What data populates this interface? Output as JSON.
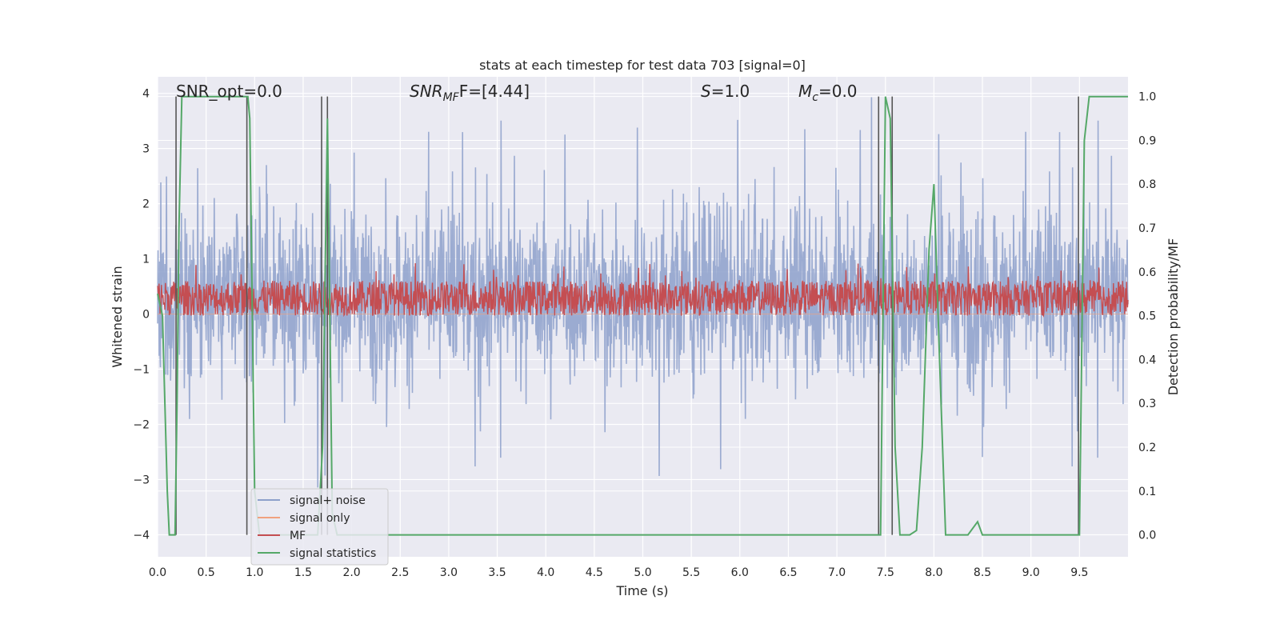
{
  "chart_data": {
    "type": "line",
    "title": "stats at each timestep for test data 703 [signal=0]",
    "xlabel": "Time (s)",
    "ylabel_left": "Whitened strain",
    "ylabel_right": "Detection probability/MF",
    "xlim": [
      0.0,
      10.0
    ],
    "ylim_left": [
      -4.4,
      4.3
    ],
    "ylim_right": [
      -0.05,
      1.045
    ],
    "x_ticks": [
      "0.0",
      "0.5",
      "1.0",
      "1.5",
      "2.0",
      "2.5",
      "3.0",
      "3.5",
      "4.0",
      "4.5",
      "5.0",
      "5.5",
      "6.0",
      "6.5",
      "7.0",
      "7.5",
      "8.0",
      "8.5",
      "9.0",
      "9.5"
    ],
    "y_ticks_left": [
      "−4",
      "−3",
      "−2",
      "−1",
      "0",
      "1",
      "2",
      "3",
      "4"
    ],
    "y_ticks_right": [
      "0.0",
      "0.1",
      "0.2",
      "0.3",
      "0.4",
      "0.5",
      "0.6",
      "0.7",
      "0.8",
      "0.9",
      "1.0"
    ],
    "annotations": {
      "snr_opt": "SNR_opt=0.0",
      "snr_mf_base": "SNR",
      "snr_mf_sub": "MF",
      "snr_mf_rest": "F=[4.44]",
      "s_var": "S",
      "s_rest": "=1.0",
      "mc_var": "M",
      "mc_sub": "c",
      "mc_rest": "=0.0"
    },
    "legend": {
      "placement": "lower-left",
      "entries": [
        {
          "label": "signal+ noise",
          "color": "#8da0cb"
        },
        {
          "label": "signal only",
          "color": "#f0a17f"
        },
        {
          "label": "MF",
          "color": "#c44e52"
        },
        {
          "label": "signal statistics",
          "color": "#55a868"
        }
      ]
    },
    "series": [
      {
        "name": "signal+ noise",
        "axis": "left",
        "kind": "noise",
        "range": [
          -4.0,
          4.0
        ],
        "typical_band": [
          -1.6,
          2.3
        ]
      },
      {
        "name": "signal only",
        "axis": "left",
        "kind": "flat",
        "values": [
          0.0
        ]
      },
      {
        "name": "MF",
        "axis": "right",
        "kind": "noise",
        "range": [
          0.5,
          0.62
        ],
        "typical_band": [
          0.5,
          0.58
        ]
      },
      {
        "name": "signal statistics",
        "axis": "right",
        "x": [
          0.0,
          0.05,
          0.1,
          0.12,
          0.18,
          0.2,
          0.22,
          0.25,
          0.3,
          0.93,
          0.95,
          1.0,
          1.05,
          1.65,
          1.7,
          1.75,
          1.8,
          1.85,
          7.4,
          7.45,
          7.5,
          7.55,
          7.6,
          7.65,
          7.75,
          7.82,
          7.88,
          7.95,
          8.0,
          8.05,
          8.12,
          8.35,
          8.45,
          8.5,
          9.5,
          9.55,
          9.6,
          10.0
        ],
        "y": [
          0.55,
          0.5,
          0.1,
          0.0,
          0.0,
          0.3,
          0.7,
          1.0,
          1.0,
          1.0,
          0.95,
          0.1,
          0.0,
          0.0,
          0.2,
          0.95,
          0.05,
          0.0,
          0.0,
          0.0,
          1.0,
          0.95,
          0.2,
          0.0,
          0.0,
          0.01,
          0.2,
          0.65,
          0.8,
          0.45,
          0.0,
          0.0,
          0.03,
          0.0,
          0.0,
          0.9,
          1.0,
          1.0
        ]
      }
    ],
    "vertical_markers_x": [
      0.19,
      0.92,
      1.69,
      1.75,
      7.43,
      7.57,
      9.49
    ],
    "colors": {
      "plot_bg": "#eaeaf2",
      "grid": "#ffffff",
      "marker_line": "#555555"
    }
  }
}
